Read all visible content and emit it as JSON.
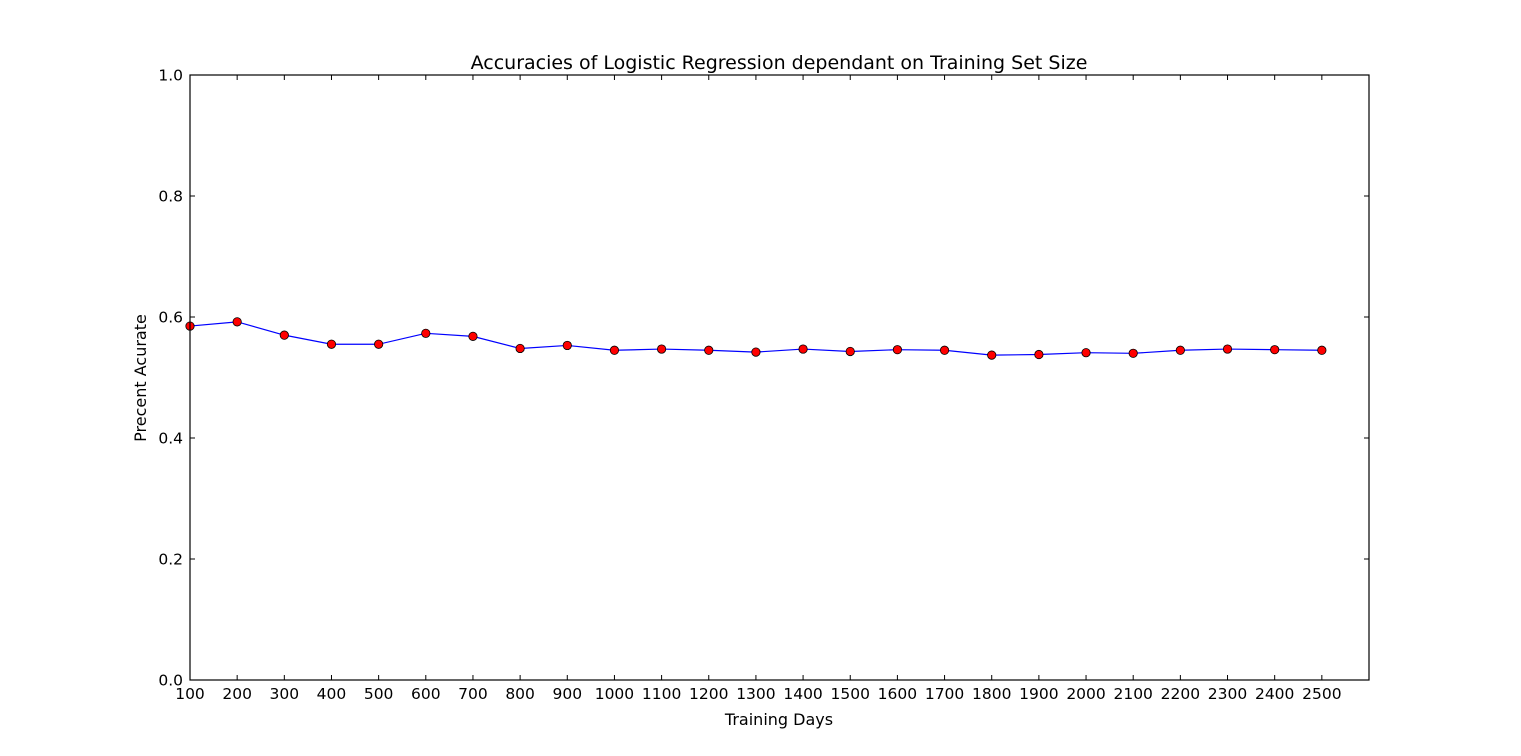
{
  "chart_data": {
    "type": "line",
    "title": "Accuracies of Logistic Regression dependant on Training Set Size",
    "xlabel": "Training Days",
    "ylabel": "Precent Acurate",
    "x": [
      100,
      200,
      300,
      400,
      500,
      600,
      700,
      800,
      900,
      1000,
      1100,
      1200,
      1300,
      1400,
      1500,
      1600,
      1700,
      1800,
      1900,
      2000,
      2100,
      2200,
      2300,
      2400,
      2500
    ],
    "series": [
      {
        "values": [
          0.585,
          0.592,
          0.57,
          0.555,
          0.555,
          0.573,
          0.568,
          0.548,
          0.553,
          0.545,
          0.547,
          0.545,
          0.542,
          0.547,
          0.543,
          0.546,
          0.545,
          0.537,
          0.538,
          0.541,
          0.54,
          0.545,
          0.547,
          0.546,
          0.545
        ],
        "line_color": "#0000ff",
        "marker_color": "#ff0000"
      }
    ],
    "xlim": [
      100,
      2600
    ],
    "ylim": [
      0.0,
      1.0
    ],
    "xticks": [
      100,
      200,
      300,
      400,
      500,
      600,
      700,
      800,
      900,
      1000,
      1100,
      1200,
      1300,
      1400,
      1500,
      1600,
      1700,
      1800,
      1900,
      2000,
      2100,
      2200,
      2300,
      2400,
      2500
    ],
    "yticks": [
      "0.0",
      "0.2",
      "0.4",
      "0.6",
      "0.8",
      "1.0"
    ],
    "grid": false,
    "legend": "none"
  }
}
